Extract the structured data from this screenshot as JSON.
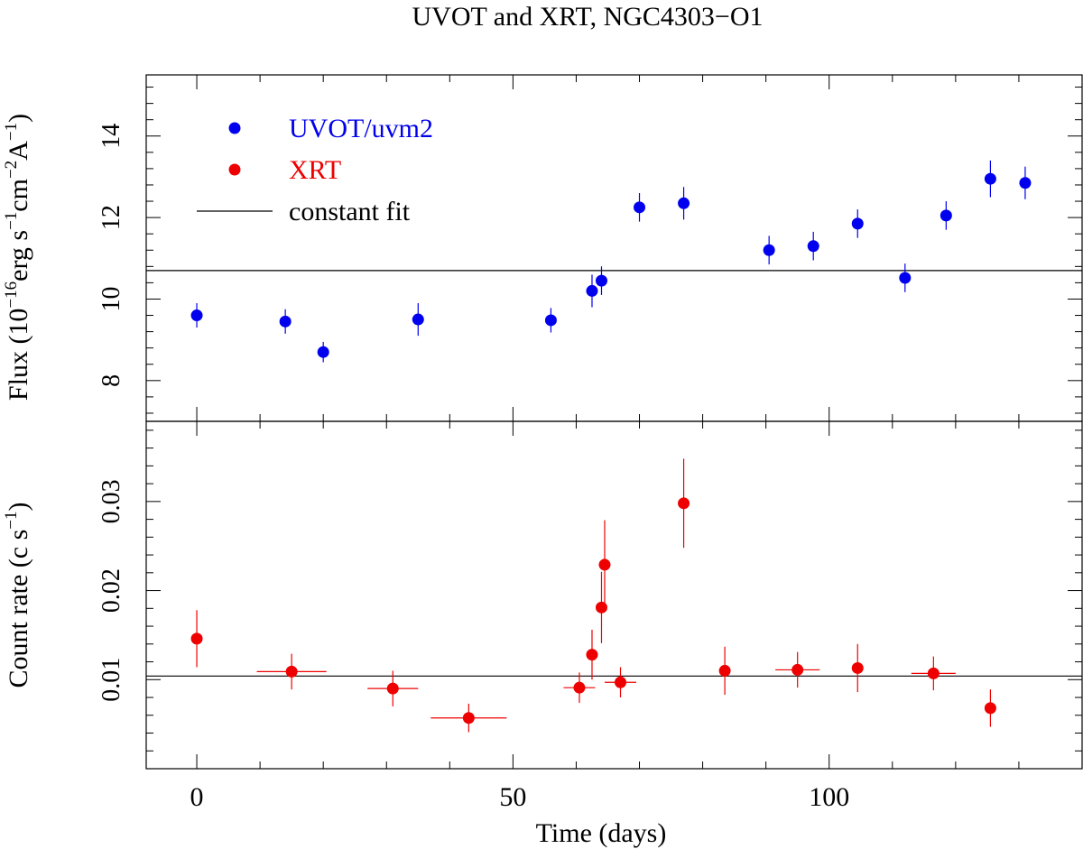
{
  "title": "UVOT and XRT, NGC4303−O1",
  "colors": {
    "uvot": "#0000ee",
    "xrt": "#ee0000",
    "axis": "#000000",
    "fit": "#000000"
  },
  "chart_data": [
    {
      "type": "scatter",
      "panel": "top",
      "ylabel": "Flux (10⁻¹⁶erg s⁻¹cm⁻²A⁻¹)",
      "ylabel_parts": [
        "Flux (10",
        "−16",
        "erg s",
        "−1",
        "cm",
        "−2",
        "A",
        "−1",
        ")"
      ],
      "xlim": [
        -8,
        140
      ],
      "ylim": [
        7,
        15.5
      ],
      "yticks": [
        8,
        10,
        12,
        14
      ],
      "ytick_labels": [
        "8",
        "10",
        "12",
        "14"
      ],
      "legend": [
        {
          "label": "UVOT/uvm2",
          "kind": "marker",
          "color": "#0000ee"
        },
        {
          "label": "XRT",
          "kind": "marker",
          "color": "#ee0000"
        },
        {
          "label": "constant fit",
          "kind": "line",
          "color": "#000000"
        }
      ],
      "constant_fit": 10.7,
      "series": [
        {
          "name": "UVOT/uvm2",
          "color": "#0000ee",
          "points": [
            {
              "x": 0,
              "y": 9.6,
              "yerr": 0.3,
              "xerr": 0
            },
            {
              "x": 14,
              "y": 9.45,
              "yerr": 0.3,
              "xerr": 0
            },
            {
              "x": 20,
              "y": 8.7,
              "yerr": 0.25,
              "xerr": 0
            },
            {
              "x": 35,
              "y": 9.5,
              "yerr": 0.4,
              "xerr": 0
            },
            {
              "x": 56,
              "y": 9.48,
              "yerr": 0.3,
              "xerr": 0
            },
            {
              "x": 62.5,
              "y": 10.2,
              "yerr": 0.4,
              "xerr": 0
            },
            {
              "x": 64,
              "y": 10.45,
              "yerr": 0.35,
              "xerr": 0
            },
            {
              "x": 70,
              "y": 12.25,
              "yerr": 0.35,
              "xerr": 0
            },
            {
              "x": 77,
              "y": 12.35,
              "yerr": 0.4,
              "xerr": 0
            },
            {
              "x": 90.5,
              "y": 11.2,
              "yerr": 0.35,
              "xerr": 0
            },
            {
              "x": 97.5,
              "y": 11.3,
              "yerr": 0.35,
              "xerr": 0
            },
            {
              "x": 104.5,
              "y": 11.85,
              "yerr": 0.35,
              "xerr": 0
            },
            {
              "x": 112,
              "y": 10.52,
              "yerr": 0.35,
              "xerr": 0
            },
            {
              "x": 118.5,
              "y": 12.05,
              "yerr": 0.35,
              "xerr": 0
            },
            {
              "x": 125.5,
              "y": 12.95,
              "yerr": 0.45,
              "xerr": 0
            },
            {
              "x": 131,
              "y": 12.85,
              "yerr": 0.4,
              "xerr": 0
            }
          ]
        }
      ]
    },
    {
      "type": "scatter",
      "panel": "bottom",
      "xlabel": "Time (days)",
      "ylabel": "Count rate (c s⁻¹)",
      "ylabel_parts": [
        "Count rate (c s",
        "−1",
        ")"
      ],
      "xlim": [
        -8,
        140
      ],
      "ylim": [
        0,
        0.039
      ],
      "xticks": [
        0,
        50,
        100
      ],
      "xtick_labels": [
        "0",
        "50",
        "100"
      ],
      "yticks": [
        0.01,
        0.02,
        0.03
      ],
      "ytick_labels": [
        "0.01",
        "0.02",
        "0.03"
      ],
      "constant_fit": 0.0104,
      "series": [
        {
          "name": "XRT",
          "color": "#ee0000",
          "points": [
            {
              "x": 0,
              "y": 0.0146,
              "yerr": 0.0032,
              "xerr": 0
            },
            {
              "x": 15,
              "y": 0.0109,
              "yerr": 0.002,
              "xerr": 5.5
            },
            {
              "x": 31,
              "y": 0.009,
              "yerr": 0.002,
              "xerr": 4
            },
            {
              "x": 43,
              "y": 0.0057,
              "yerr": 0.0016,
              "xerr": 6
            },
            {
              "x": 60.5,
              "y": 0.0091,
              "yerr": 0.0017,
              "xerr": 2.5
            },
            {
              "x": 62.5,
              "y": 0.0128,
              "yerr": 0.0028,
              "xerr": 0
            },
            {
              "x": 64,
              "y": 0.0181,
              "yerr": 0.004,
              "xerr": 0
            },
            {
              "x": 64.5,
              "y": 0.0229,
              "yerr": 0.005,
              "xerr": 0
            },
            {
              "x": 67,
              "y": 0.0097,
              "yerr": 0.0017,
              "xerr": 2.5
            },
            {
              "x": 77,
              "y": 0.0298,
              "yerr": 0.005,
              "xerr": 0
            },
            {
              "x": 83.5,
              "y": 0.011,
              "yerr": 0.0027,
              "xerr": 0
            },
            {
              "x": 95,
              "y": 0.0111,
              "yerr": 0.002,
              "xerr": 3.5
            },
            {
              "x": 104.5,
              "y": 0.0113,
              "yerr": 0.0027,
              "xerr": 0
            },
            {
              "x": 116.5,
              "y": 0.0107,
              "yerr": 0.0019,
              "xerr": 3.5
            },
            {
              "x": 125.5,
              "y": 0.0068,
              "yerr": 0.0021,
              "xerr": 0
            }
          ]
        }
      ]
    }
  ]
}
